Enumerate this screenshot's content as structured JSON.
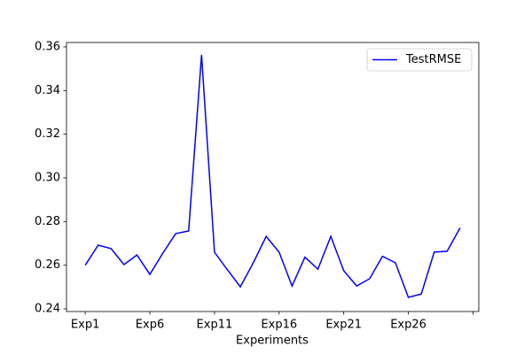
{
  "chart_data": {
    "type": "line",
    "x_label": "Experiments",
    "categories": [
      "Exp1",
      null,
      null,
      null,
      null,
      "Exp6",
      null,
      null,
      null,
      null,
      "Exp11",
      null,
      null,
      null,
      null,
      "Exp16",
      null,
      null,
      null,
      null,
      "Exp21",
      null,
      null,
      null,
      null,
      "Exp26",
      null,
      null,
      null,
      null
    ],
    "series": [
      {
        "name": "TestRMSE",
        "color": "#0000ff",
        "values": [
          0.26,
          0.2692,
          0.2676,
          0.2603,
          0.2647,
          0.2558,
          0.2655,
          0.2745,
          0.2757,
          0.3563,
          0.266,
          0.2579,
          0.2501,
          0.2611,
          0.2732,
          0.266,
          0.2505,
          0.2637,
          0.2582,
          0.2732,
          0.2575,
          0.2505,
          0.2538,
          0.2641,
          0.2611,
          0.2453,
          0.2468,
          0.266,
          0.2664,
          0.2771
        ]
      }
    ],
    "xlim": [
      -1.45,
      30.45
    ],
    "xticks": [
      0,
      5,
      10,
      15,
      20,
      25,
      30
    ],
    "ylim": [
      0.2388,
      0.362
    ],
    "yticks": [
      0.24,
      0.26,
      0.28,
      {
        "value": 0.3,
        "label": "0.30"
      },
      0.32,
      0.34,
      0.36
    ],
    "legend": "upper right"
  }
}
